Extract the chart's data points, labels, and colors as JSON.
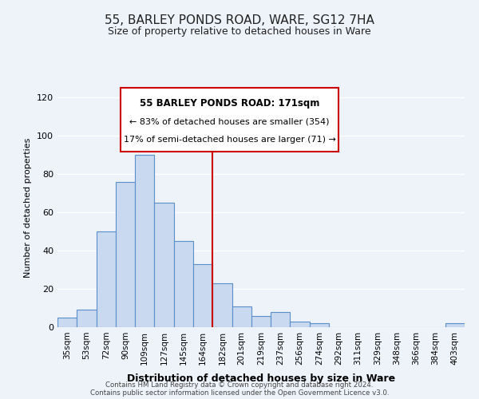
{
  "title": "55, BARLEY PONDS ROAD, WARE, SG12 7HA",
  "subtitle": "Size of property relative to detached houses in Ware",
  "xlabel": "Distribution of detached houses by size in Ware",
  "ylabel": "Number of detached properties",
  "bar_labels": [
    "35sqm",
    "53sqm",
    "72sqm",
    "90sqm",
    "109sqm",
    "127sqm",
    "145sqm",
    "164sqm",
    "182sqm",
    "201sqm",
    "219sqm",
    "237sqm",
    "256sqm",
    "274sqm",
    "292sqm",
    "311sqm",
    "329sqm",
    "348sqm",
    "366sqm",
    "384sqm",
    "403sqm"
  ],
  "bar_values": [
    5,
    9,
    50,
    76,
    90,
    65,
    45,
    33,
    23,
    11,
    6,
    8,
    3,
    2,
    0,
    0,
    0,
    0,
    0,
    0,
    2
  ],
  "bar_color": "#c8d9f0",
  "bar_edge_color": "#5b8fc9",
  "vline_x": 7.5,
  "vline_color": "#cc0000",
  "ylim": [
    0,
    125
  ],
  "yticks": [
    0,
    20,
    40,
    60,
    80,
    100,
    120
  ],
  "annotation_title": "55 BARLEY PONDS ROAD: 171sqm",
  "annotation_line1": "← 83% of detached houses are smaller (354)",
  "annotation_line2": "17% of semi-detached houses are larger (71) →",
  "annotation_box_color": "#ffffff",
  "annotation_box_edge": "#cc0000",
  "footer_line1": "Contains HM Land Registry data © Crown copyright and database right 2024.",
  "footer_line2": "Contains public sector information licensed under the Open Government Licence v3.0.",
  "background_color": "#eef2f9",
  "grid_color": "#ffffff",
  "title_fontsize": 11,
  "subtitle_fontsize": 9,
  "ylabel_fontsize": 8,
  "xlabel_fontsize": 9,
  "tick_fontsize": 7.5,
  "ytick_fontsize": 8
}
